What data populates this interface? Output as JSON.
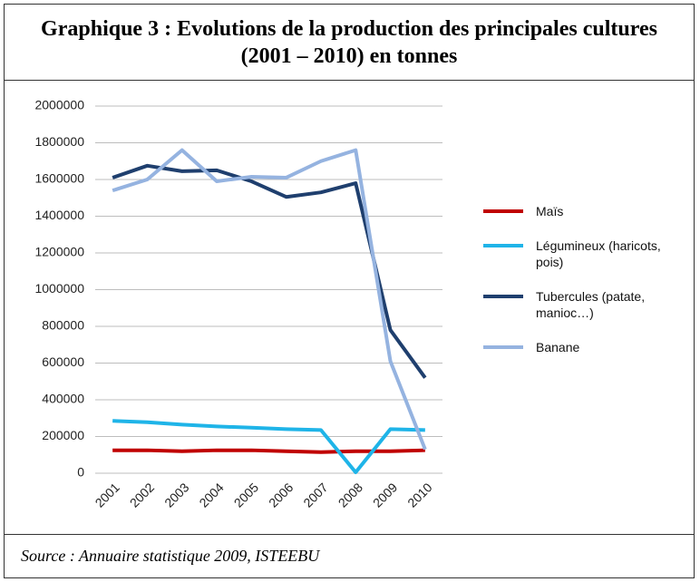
{
  "title": "Graphique 3 : Evolutions de la production des principales cultures (2001 – 2010) en tonnes",
  "chart_data": {
    "type": "line",
    "categories": [
      "2001",
      "2002",
      "2003",
      "2004",
      "2005",
      "2006",
      "2007",
      "2008",
      "2009",
      "2010"
    ],
    "series": [
      {
        "name": "Maïs",
        "color": "#c00000",
        "values": [
          125000,
          125000,
          120000,
          125000,
          125000,
          120000,
          115000,
          120000,
          120000,
          125000
        ]
      },
      {
        "name": "Légumineux (haricots, pois)",
        "color": "#1fb4e8",
        "values": [
          285000,
          278000,
          265000,
          255000,
          248000,
          240000,
          235000,
          5000,
          240000,
          235000
        ]
      },
      {
        "name": "Tubercules (patate, manioc…)",
        "color": "#1f3f6e",
        "values": [
          1610000,
          1675000,
          1645000,
          1650000,
          1590000,
          1505000,
          1530000,
          1580000,
          780000,
          520000
        ]
      },
      {
        "name": "Banane",
        "color": "#95b3e0",
        "values": [
          1540000,
          1600000,
          1760000,
          1590000,
          1615000,
          1610000,
          1700000,
          1760000,
          610000,
          130000
        ]
      }
    ],
    "ylim": [
      0,
      2000000
    ],
    "yticks": [
      0,
      200000,
      400000,
      600000,
      800000,
      1000000,
      1200000,
      1400000,
      1600000,
      1800000,
      2000000
    ],
    "grid": true,
    "legend": "right"
  },
  "source": "Source : Annuaire statistique 2009, ISTEEBU"
}
